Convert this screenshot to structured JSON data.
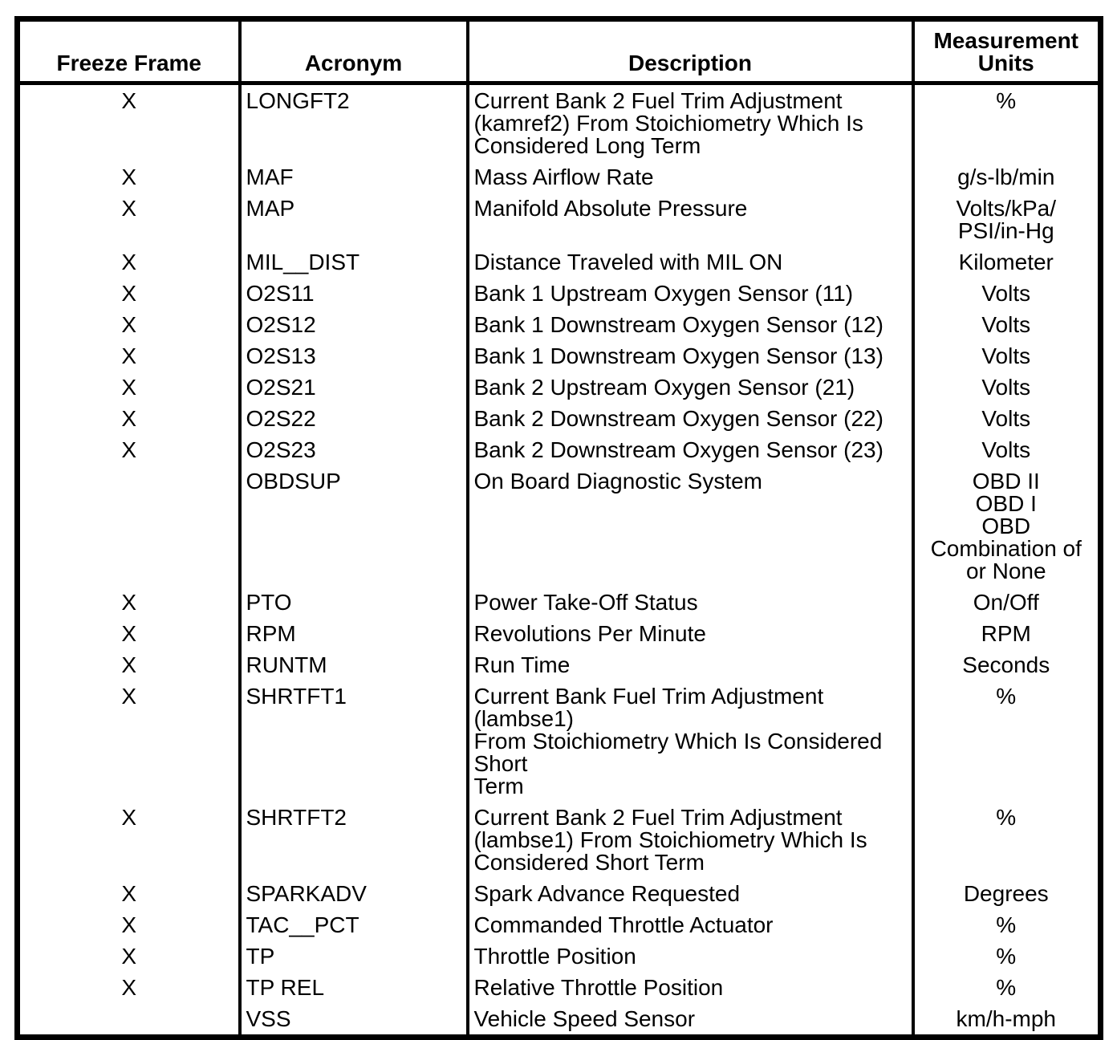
{
  "page": {
    "background_color": "#ffffff",
    "text_color": "#000000"
  },
  "table": {
    "headers": [
      "Freeze Frame",
      "Acronym",
      "Description",
      "Measurement\nUnits"
    ],
    "rows": [
      {
        "freeze_frame": "X",
        "acronym": "LONGFT2",
        "description": "Current Bank 2 Fuel Trim Adjustment\n(kamref2) From Stoichiometry Which Is\nConsidered Long Term",
        "units": "%"
      },
      {
        "freeze_frame": "X",
        "acronym": "MAF",
        "description": "Mass Airflow Rate",
        "units": "g/s-lb/min"
      },
      {
        "freeze_frame": "X",
        "acronym": "MAP",
        "description": "Manifold Absolute Pressure",
        "units": "Volts/kPa/\nPSI/in-Hg"
      },
      {
        "freeze_frame": "X",
        "acronym": "MIL__DIST",
        "description": "Distance Traveled with MIL ON",
        "units": "Kilometer"
      },
      {
        "freeze_frame": "X",
        "acronym": "O2S11",
        "description": "Bank 1 Upstream Oxygen Sensor (11)",
        "units": "Volts"
      },
      {
        "freeze_frame": "X",
        "acronym": "O2S12",
        "description": "Bank 1 Downstream Oxygen Sensor (12)",
        "units": "Volts"
      },
      {
        "freeze_frame": "X",
        "acronym": "O2S13",
        "description": "Bank 1 Downstream Oxygen Sensor (13)",
        "units": "Volts"
      },
      {
        "freeze_frame": "X",
        "acronym": "O2S21",
        "description": "Bank 2 Upstream Oxygen Sensor (21)",
        "units": "Volts"
      },
      {
        "freeze_frame": "X",
        "acronym": "O2S22",
        "description": "Bank 2 Downstream Oxygen Sensor (22)",
        "units": "Volts"
      },
      {
        "freeze_frame": "X",
        "acronym": "O2S23",
        "description": "Bank 2 Downstream Oxygen Sensor (23)",
        "units": "Volts"
      },
      {
        "freeze_frame": "",
        "acronym": "OBDSUP",
        "description": "On Board Diagnostic System",
        "units": "OBD II\nOBD I\nOBD\nCombination of\nor None"
      },
      {
        "freeze_frame": "X",
        "acronym": "PTO",
        "description": "Power Take-Off Status",
        "units": "On/Off"
      },
      {
        "freeze_frame": "X",
        "acronym": "RPM",
        "description": "Revolutions Per Minute",
        "units": "RPM"
      },
      {
        "freeze_frame": "X",
        "acronym": "RUNTM",
        "description": "Run Time",
        "units": "Seconds"
      },
      {
        "freeze_frame": "X",
        "acronym": "SHRTFT1",
        "description": "Current Bank Fuel Trim Adjustment (lambse1)\nFrom Stoichiometry Which Is Considered Short\nTerm",
        "units": "%"
      },
      {
        "freeze_frame": "X",
        "acronym": "SHRTFT2",
        "description": "Current Bank 2 Fuel Trim Adjustment\n(lambse1) From Stoichiometry Which Is\nConsidered Short Term",
        "units": "%"
      },
      {
        "freeze_frame": "X",
        "acronym": "SPARKADV",
        "description": "Spark Advance Requested",
        "units": "Degrees"
      },
      {
        "freeze_frame": "X",
        "acronym": "TAC__PCT",
        "description": "Commanded Throttle Actuator",
        "units": "%"
      },
      {
        "freeze_frame": "X",
        "acronym": "TP",
        "description": "Throttle Position",
        "units": "%"
      },
      {
        "freeze_frame": "X",
        "acronym": "TP REL",
        "description": "Relative Throttle Position",
        "units": "%"
      },
      {
        "freeze_frame": "",
        "acronym": "VSS",
        "description": "Vehicle Speed Sensor",
        "units": "km/h-mph"
      }
    ]
  }
}
